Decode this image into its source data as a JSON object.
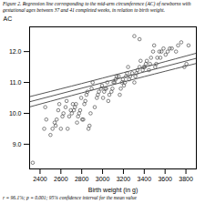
{
  "chart_data": {
    "type": "scatter",
    "title": "Figure 2. Regression line corresponding to the mid-arm circumference (AC) of newborns with",
    "subtitle": "gestational ages between 37 and 41 completed weeks, in relation to birth weight.",
    "caption": "r = 96.1%; p = 0.001; 95% confidence interval for the mean value",
    "xlabel": "Birth weight (in g)",
    "ylabel": "AC",
    "xlim": [
      2300,
      3900
    ],
    "ylim": [
      8.2,
      12.8
    ],
    "xticks": [
      2400,
      2600,
      2800,
      3000,
      3200,
      3400,
      3600,
      3800
    ],
    "yticks": [
      {
        "value": 9.0,
        "label": "9.0"
      },
      {
        "value": 10.0,
        "label": "10.0"
      },
      {
        "value": 11.0,
        "label": "11.0"
      },
      {
        "value": 12.0,
        "label": "12.0"
      }
    ],
    "grid": false,
    "series": [
      {
        "type": "scatter",
        "marker": "open_circle",
        "color": "#333333",
        "x": [
          2330,
          2440,
          2460,
          2450,
          2500,
          2520,
          2540,
          2550,
          2560,
          2575,
          2585,
          2600,
          2615,
          2625,
          2645,
          2655,
          2665,
          2680,
          2695,
          2705,
          2715,
          2725,
          2735,
          2745,
          2755,
          2765,
          2775,
          2785,
          2795,
          2805,
          2815,
          2825,
          2835,
          2845,
          2855,
          2865,
          2875,
          2885,
          2895,
          2905,
          2925,
          2945,
          2955,
          2965,
          2985,
          2995,
          3005,
          3015,
          3025,
          3035,
          3045,
          3055,
          3065,
          3085,
          3095,
          3105,
          3115,
          3125,
          3135,
          3155,
          3165,
          3175,
          3185,
          3195,
          3205,
          3215,
          3225,
          3235,
          3245,
          3255,
          3265,
          3285,
          3305,
          3315,
          3325,
          3335,
          3355,
          3365,
          3385,
          3395,
          3405,
          3415,
          3425,
          3445,
          3455,
          3465,
          3485,
          3495,
          3505,
          3515,
          3525,
          3545,
          3555,
          3565,
          3585,
          3605,
          3625,
          3645,
          3665,
          3705,
          3725,
          3755,
          3785,
          3805,
          3825,
          3305,
          3355
        ],
        "values": [
          8.4,
          9.5,
          9.8,
          10.2,
          9.3,
          9.5,
          9.7,
          9.6,
          9.8,
          10.1,
          10.3,
          9.5,
          9.9,
          10.0,
          10.2,
          10.4,
          9.5,
          9.9,
          10.1,
          10.0,
          10.3,
          10.1,
          10.2,
          10.3,
          9.7,
          9.9,
          10.0,
          10.1,
          10.5,
          9.8,
          9.8,
          10.3,
          10.4,
          10.6,
          10.7,
          9.5,
          9.6,
          10.0,
          10.8,
          11.0,
          10.2,
          10.5,
          10.6,
          10.7,
          10.8,
          10.9,
          10.5,
          10.7,
          10.8,
          10.8,
          11.0,
          10.4,
          10.6,
          10.7,
          10.8,
          11.0,
          11.0,
          11.1,
          11.2,
          11.2,
          10.6,
          10.8,
          11.0,
          11.1,
          10.9,
          11.0,
          11.2,
          11.3,
          11.5,
          11.1,
          11.2,
          11.3,
          11.0,
          11.2,
          11.3,
          11.4,
          11.5,
          11.7,
          11.4,
          11.5,
          11.5,
          11.6,
          11.7,
          11.4,
          11.6,
          11.8,
          12.0,
          12.2,
          11.5,
          11.6,
          11.8,
          12.0,
          11.8,
          12.0,
          12.1,
          11.9,
          12.0,
          12.1,
          12.1,
          12.0,
          12.2,
          12.3,
          11.5,
          11.6,
          12.2,
          12.5,
          12.4
        ]
      },
      {
        "type": "line",
        "line_style": "solid",
        "color": "#555555",
        "x": [
          2300,
          3900
        ],
        "values": [
          10.374,
          11.782
        ]
      },
      {
        "type": "line",
        "line_style": "solid",
        "color": "#555555",
        "x": [
          2300,
          2400,
          2500,
          2600,
          2700,
          2800,
          2900,
          3000,
          3100,
          3200,
          3300,
          3400,
          3500,
          3600,
          3700,
          3800,
          3900
        ],
        "values": [
          10.54,
          10.62425,
          10.709,
          10.79425,
          10.88,
          10.96625,
          11.053,
          11.14025,
          11.228,
          11.31625,
          11.405,
          11.49425,
          11.584,
          11.67425,
          11.765,
          11.85625,
          11.948
        ]
      },
      {
        "type": "line",
        "line_style": "solid",
        "color": "#555555",
        "x": [
          2300,
          2400,
          2500,
          2600,
          2700,
          2800,
          2900,
          3000,
          3100,
          3200,
          3300,
          3400,
          3500,
          3600,
          3700,
          3800,
          3900
        ],
        "values": [
          10.208,
          10.29975,
          10.391,
          10.48175,
          10.572,
          10.66175,
          10.751,
          10.83975,
          10.928,
          11.01575,
          11.103,
          11.18975,
          11.276,
          11.36175,
          11.447,
          11.53175,
          11.616
        ]
      }
    ]
  }
}
